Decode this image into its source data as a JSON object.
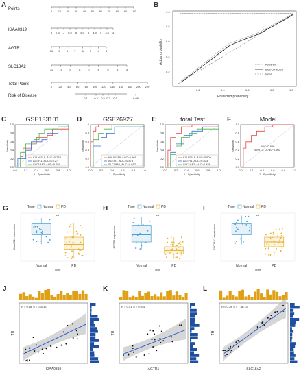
{
  "panel_labels": {
    "A": "A",
    "B": "B",
    "C": "C",
    "D": "D",
    "E": "E",
    "F": "F",
    "G": "G",
    "H": "H",
    "I": "I",
    "J": "J",
    "K": "K",
    "L": "L"
  },
  "nomogram": {
    "rows": [
      {
        "label": "Points",
        "ticks": [
          "0",
          "10",
          "20",
          "30",
          "40",
          "50",
          "60",
          "70",
          "80",
          "90",
          "100"
        ]
      },
      {
        "label": "KIAA0319",
        "ticks": [
          "8",
          "7.5",
          "7",
          "6.5",
          "6",
          "5.5",
          "5",
          "4.5",
          "4",
          "3.5",
          "3"
        ]
      },
      {
        "label": "AGTR1",
        "ticks": [
          "10",
          "9",
          "8",
          "7",
          "6",
          "5",
          "4",
          "3"
        ]
      },
      {
        "label": "SLC18A2",
        "ticks": [
          "11",
          "10",
          "9",
          "8",
          "7",
          "6",
          "5",
          "4",
          "3"
        ]
      },
      {
        "label": "Total Points",
        "ticks": [
          "0",
          "20",
          "40",
          "60",
          "80",
          "100",
          "120",
          "140",
          "160",
          "180",
          "200",
          "220"
        ]
      },
      {
        "label": "Risk of Disease",
        "ticks": [
          "0.1",
          "0.3",
          "0.5",
          "0.7",
          "0.9",
          "0.99"
        ]
      }
    ]
  },
  "calibration": {
    "ylabel": "Actual probability",
    "xlabel": "Predicted probability",
    "ticks": [
      "0.2",
      "0.4",
      "0.6",
      "0.8",
      "1.0"
    ],
    "legend": [
      "Apparent",
      "Bias-corrected",
      "Ideal"
    ]
  },
  "roc_panels": [
    {
      "key": "C",
      "title": "GSE133101",
      "legend": [
        "KIAA0319, AUC=0.733",
        "AGTR1, AUC=0.727",
        "SLC18A2, AUC=0.760"
      ]
    },
    {
      "key": "D",
      "title": "GSE26927",
      "legend": [
        "KIAA0319, AUC=0.969",
        "AGTR1, AUC=0.875",
        "SLC18A2, AUC=0.917"
      ]
    },
    {
      "key": "E",
      "title": "total Test",
      "legend": [
        "KIAA0319, AUC=0.909",
        "AGTR1, AUC=0.833",
        "SLC18A2, AUC=0.828"
      ]
    },
    {
      "key": "F",
      "title": "Model",
      "annot1": "AUC: 0.890",
      "annot2": "95% CI: 0.730~0.960"
    }
  ],
  "roc_axes": {
    "xlabel": "1 - Specificity",
    "ylabel": "Sensitivity"
  },
  "boxplots": [
    {
      "key": "G",
      "ylabel": "KIAA0319 expression",
      "sig": "***"
    },
    {
      "key": "H",
      "ylabel": "AGTR1 expression",
      "sig": "***"
    },
    {
      "key": "I",
      "ylabel": "SLC18A2 expression",
      "sig": "***"
    }
  ],
  "box_common": {
    "legend_title": "Type",
    "groups": [
      "Normal",
      "PD"
    ],
    "xlabel": "Type"
  },
  "scatter_panels": [
    {
      "key": "J",
      "annot": "R = 0.58, p = 0.0015",
      "xlabel": "KIAA0319",
      "ylabel": "TH"
    },
    {
      "key": "K",
      "annot": "R = 0.41, p = 0.034",
      "xlabel": "AGTR1",
      "ylabel": "TH"
    },
    {
      "key": "L",
      "annot": "R = 0.79, p = 7.4e-10",
      "xlabel": "SLC18A2",
      "ylabel": "TH"
    }
  ],
  "colors": {
    "red": "#e8463a",
    "blue": "#3a6fd8",
    "green": "#45b34a",
    "normal": "#4a9ed0",
    "pd": "#e6b028",
    "bar_orange": "#e0a016",
    "bar_blue": "#1f4fa0",
    "fit": "#2c5fd6"
  }
}
